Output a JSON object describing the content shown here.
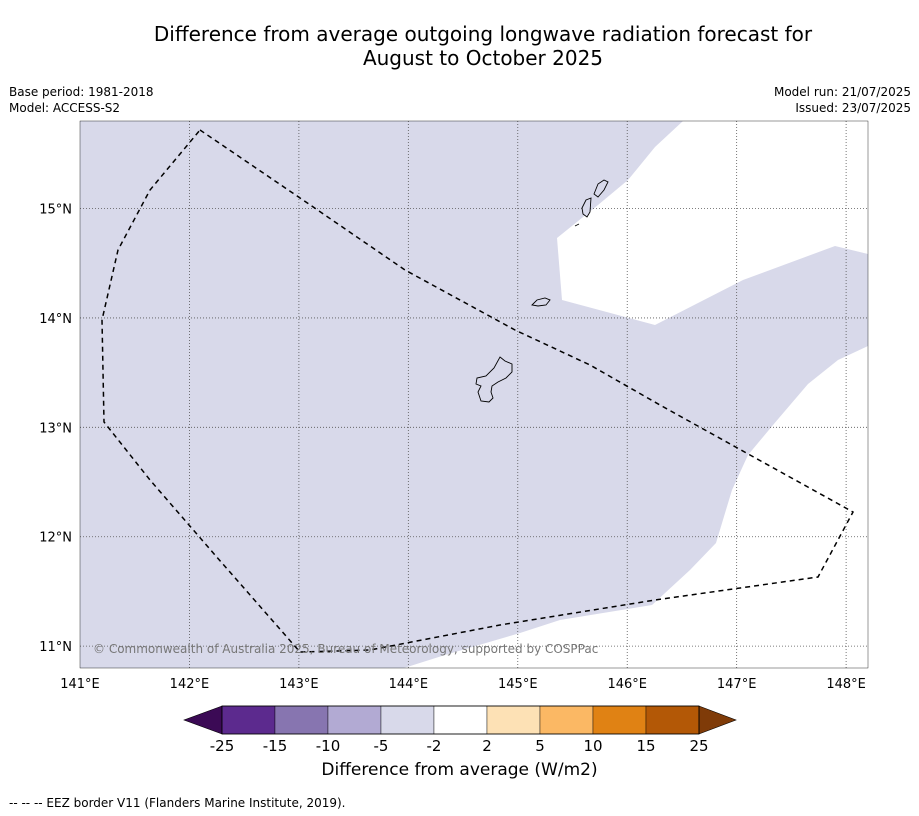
{
  "title": {
    "line1": "Difference from average outgoing longwave radiation forecast for",
    "line2": "August to October 2025"
  },
  "meta": {
    "base_period": "Base period: 1981-2018",
    "model": "Model: ACCESS-S2",
    "model_run": "Model run: 21/07/2025",
    "issued": "Issued: 23/07/2025"
  },
  "map": {
    "extent": {
      "lon": [
        141.0,
        148.2
      ],
      "lat": [
        10.8,
        15.8
      ]
    },
    "lon_ticks": [
      "141°E",
      "142°E",
      "143°E",
      "144°E",
      "145°E",
      "146°E",
      "147°E",
      "148°E"
    ],
    "lat_ticks": [
      "11°N",
      "12°N",
      "13°N",
      "14°N",
      "15°N"
    ],
    "lon_tick_values": [
      141,
      142,
      143,
      144,
      145,
      146,
      147,
      148
    ],
    "lat_tick_values": [
      11,
      12,
      13,
      14,
      15
    ],
    "gridlines": true,
    "fill_color": "#d8d9ea",
    "credit": "© Commonwealth of Australia 2025, Bureau of Meteorology, supported by COSPPac"
  },
  "colorbar": {
    "label": "Difference from average (W/m2)",
    "ticks": [
      "-25",
      "-15",
      "-10",
      "-5",
      "-2",
      "2",
      "5",
      "10",
      "15",
      "25"
    ],
    "colors": [
      "#5c2a8e",
      "#8775b0",
      "#b2aad3",
      "#d8d9ea",
      "#ffffff",
      "#fde1b5",
      "#fbb864",
      "#e08214",
      "#b35806"
    ],
    "under_color": "#3b0a55",
    "over_color": "#7f3b08"
  },
  "footer": {
    "eez_legend": "--  --  -- EEZ border V11 (Flanders Marine Institute, 2019)."
  }
}
